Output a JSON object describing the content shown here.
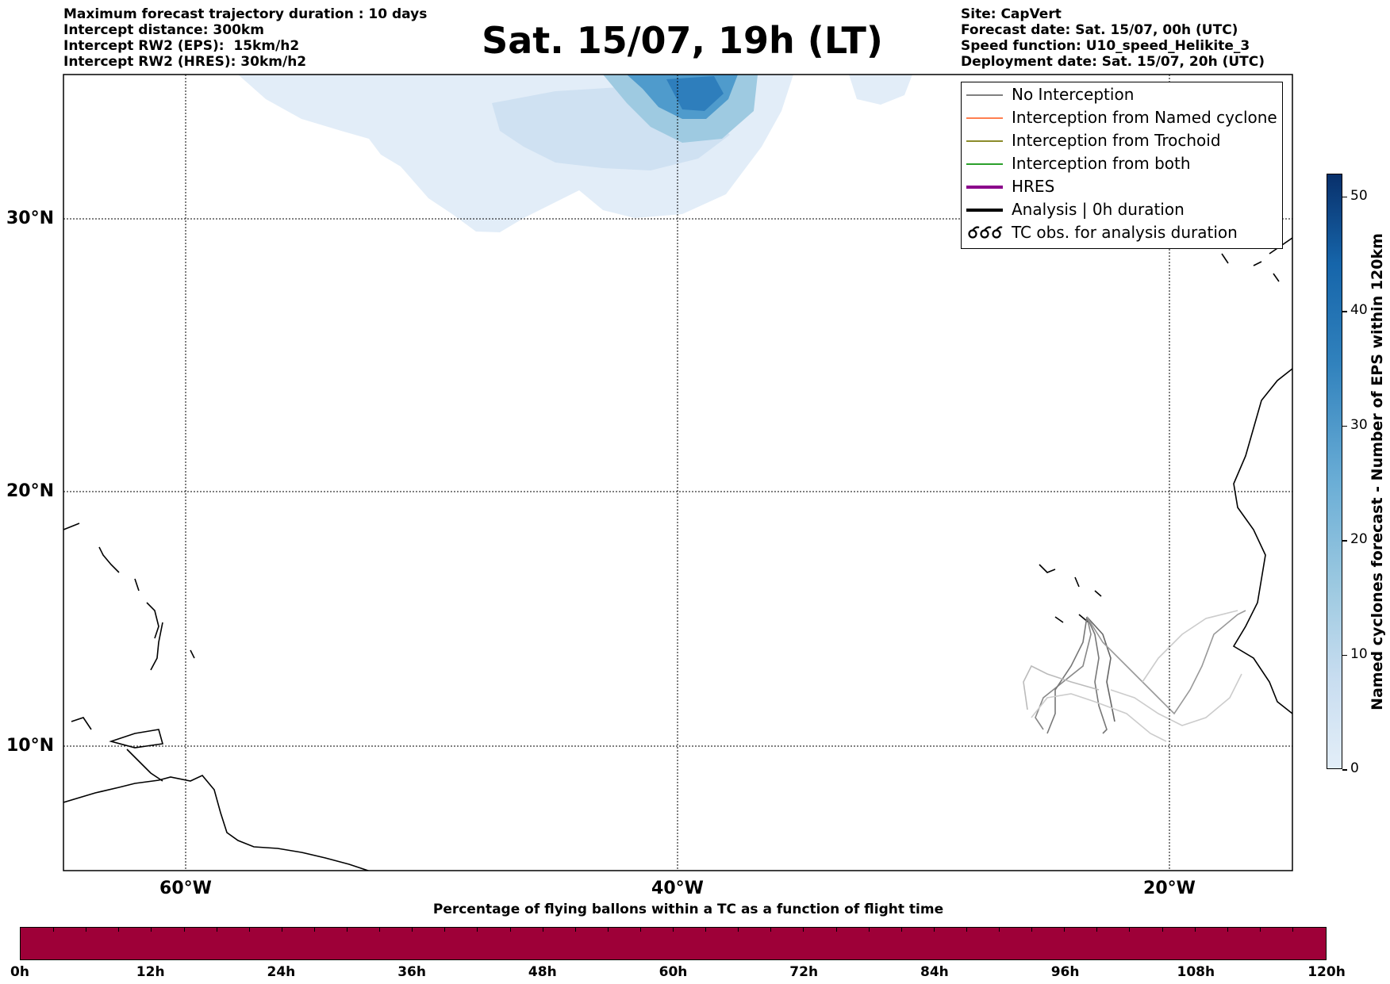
{
  "header_left": [
    "Maximum forecast trajectory duration : 10 days",
    "Intercept distance: 300km",
    "Intercept RW2 (EPS):  15km/h2",
    "Intercept RW2 (HRES): 30km/h2"
  ],
  "title": "Sat. 15/07, 19h (LT)",
  "header_right": [
    "Site: CapVert",
    "Forecast date: Sat. 15/07, 00h (UTC)",
    "Speed function: U10_speed_Helikite_3",
    "Deployment date: Sat. 15/07, 20h (UTC)"
  ],
  "map": {
    "lat_labels": [
      "30°N",
      "20°N",
      "10°N"
    ],
    "lon_labels": [
      "60°W",
      "40°W",
      "20°W"
    ],
    "lat_values": [
      30,
      20,
      10
    ],
    "lon_values": [
      -60,
      -40,
      -20
    ],
    "extent": {
      "lon_min": -65,
      "lon_max": -15,
      "lat_min": 5.5,
      "lat_max": 34.8
    },
    "grid": "dotted"
  },
  "legend": {
    "items": [
      {
        "label": "No Interception",
        "color": "#808080",
        "style": "thin"
      },
      {
        "label": "Interception from Named cyclone",
        "color": "#ff7f50",
        "style": "thin"
      },
      {
        "label": "Interception from Trochoid",
        "color": "#8b8b2a",
        "style": "thin"
      },
      {
        "label": "Interception from both",
        "color": "#2ca02c",
        "style": "thin"
      },
      {
        "label": "HRES",
        "color": "#8b008b",
        "style": "thick"
      },
      {
        "label": "Analysis | 0h duration",
        "color": "#000000",
        "style": "thick"
      },
      {
        "label": "TC obs. for analysis duration",
        "color": "#000000",
        "style": "cyclone-icons"
      }
    ],
    "placement": "top-right"
  },
  "colorbar": {
    "title": "Named cyclones forecast - Number of EPS within 120km",
    "ticks": [
      "0",
      "10",
      "20",
      "30",
      "40",
      "50"
    ],
    "tick_values": [
      0,
      10,
      20,
      30,
      40,
      50
    ],
    "max": 52,
    "colors": [
      "#e3eef8",
      "#9ecae1",
      "#3182bd",
      "#08306b"
    ]
  },
  "time_bar": {
    "title": "Percentage of flying ballons within a TC as a function of flight time",
    "labels": [
      "0h",
      "12h",
      "24h",
      "36h",
      "48h",
      "60h",
      "72h",
      "84h",
      "96h",
      "108h",
      "120h"
    ],
    "color": "#9e0038"
  }
}
